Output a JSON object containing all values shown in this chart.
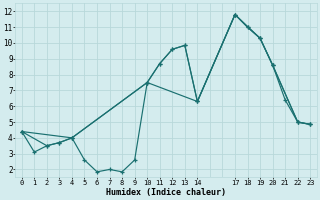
{
  "xlabel": "Humidex (Indice chaleur)",
  "bg_color": "#d4ecee",
  "grid_color": "#b8d8da",
  "line_color": "#1a7070",
  "xlim": [
    -0.5,
    23.5
  ],
  "ylim": [
    1.5,
    12.5
  ],
  "xtick_positions": [
    0,
    1,
    2,
    3,
    4,
    5,
    6,
    7,
    8,
    9,
    10,
    11,
    12,
    13,
    14,
    17,
    18,
    19,
    20,
    21,
    22,
    23
  ],
  "xtick_labels": [
    "0",
    "1",
    "2",
    "3",
    "4",
    "5",
    "6",
    "7",
    "8",
    "9",
    "10",
    "11",
    "12",
    "13",
    "14",
    "17",
    "18",
    "19",
    "20",
    "21",
    "22",
    "23"
  ],
  "ytick_positions": [
    2,
    3,
    4,
    5,
    6,
    7,
    8,
    9,
    10,
    11,
    12
  ],
  "ytick_labels": [
    "2",
    "3",
    "4",
    "5",
    "6",
    "7",
    "8",
    "9",
    "10",
    "11",
    "12"
  ],
  "line1_x": [
    0,
    1,
    2,
    3,
    4,
    5,
    6,
    7,
    8,
    9,
    10,
    11,
    12,
    13,
    14,
    17,
    18,
    19,
    20,
    21,
    22,
    23
  ],
  "line1_y": [
    4.4,
    3.1,
    3.5,
    3.7,
    4.0,
    2.6,
    1.85,
    2.0,
    1.85,
    2.6,
    7.5,
    8.7,
    9.6,
    9.85,
    6.3,
    11.8,
    11.0,
    10.3,
    8.6,
    6.4,
    5.0,
    4.85
  ],
  "line2_x": [
    0,
    2,
    3,
    4,
    10,
    11,
    12,
    13,
    14,
    17,
    18,
    19,
    20,
    22,
    23
  ],
  "line2_y": [
    4.4,
    3.5,
    3.7,
    4.0,
    7.5,
    8.7,
    9.6,
    9.85,
    6.3,
    11.8,
    11.0,
    10.3,
    8.6,
    5.0,
    4.85
  ],
  "line3_x": [
    0,
    4,
    10,
    14,
    17,
    19,
    20,
    22,
    23
  ],
  "line3_y": [
    4.4,
    4.0,
    7.5,
    6.3,
    11.8,
    10.3,
    8.6,
    5.0,
    4.85
  ]
}
